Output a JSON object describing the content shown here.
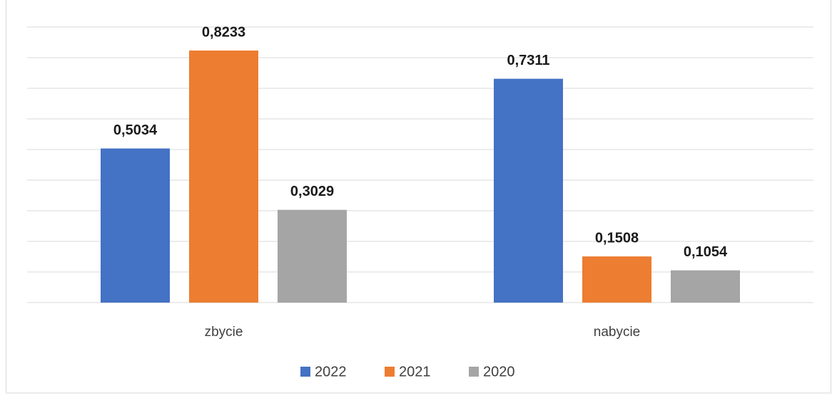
{
  "chart_data": {
    "type": "bar",
    "categories": [
      "zbycie",
      "nabycie"
    ],
    "series": [
      {
        "name": "2022",
        "color": "#4472c4",
        "values": [
          0.5034,
          0.7311
        ],
        "value_labels": [
          "0,5034",
          "0,7311"
        ]
      },
      {
        "name": "2021",
        "color": "#ed7d31",
        "values": [
          0.8233,
          0.1508
        ],
        "value_labels": [
          "0,8233",
          "0,1508"
        ]
      },
      {
        "name": "2020",
        "color": "#a5a5a5",
        "values": [
          0.3029,
          0.1054
        ],
        "value_labels": [
          "0,3029",
          "0,1054"
        ]
      }
    ],
    "ylim": [
      0,
      0.9
    ],
    "yticks": [
      0,
      0.1,
      0.2,
      0.3,
      0.4,
      0.5,
      0.6,
      0.7,
      0.8,
      0.9
    ],
    "grid": true,
    "legend": "bottom"
  }
}
